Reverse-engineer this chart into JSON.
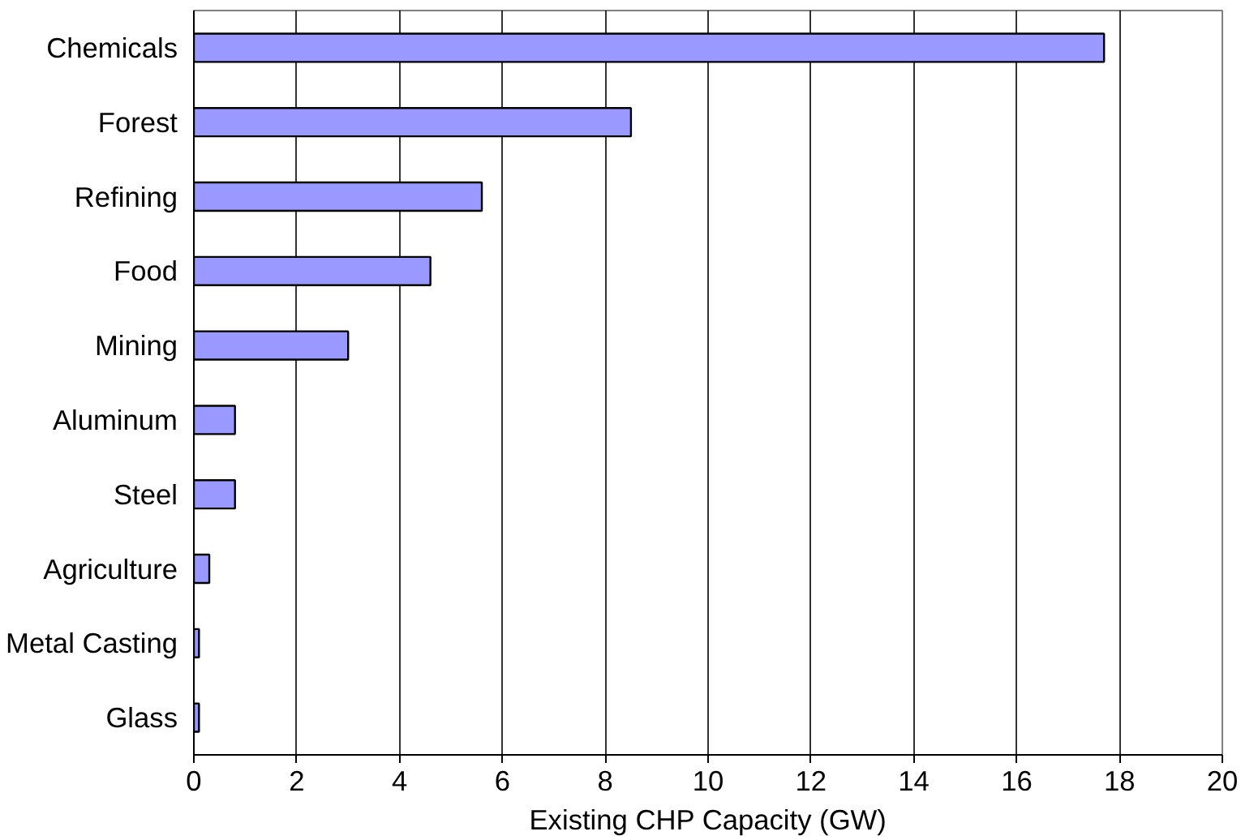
{
  "chart_data": {
    "type": "bar",
    "orientation": "horizontal",
    "xlabel": "Existing CHP Capacity (GW)",
    "categories": [
      "Chemicals",
      "Forest",
      "Refining",
      "Food",
      "Mining",
      "Aluminum",
      "Steel",
      "Agriculture",
      "Metal Casting",
      "Glass"
    ],
    "values": [
      17.7,
      8.5,
      5.6,
      4.6,
      3.0,
      0.8,
      0.8,
      0.3,
      0.1,
      0.1
    ],
    "color": "#9999ff",
    "xlim": [
      0,
      20
    ],
    "xticks": [
      0,
      2,
      4,
      6,
      8,
      10,
      12,
      14,
      16,
      18,
      20
    ],
    "grid": "x"
  }
}
